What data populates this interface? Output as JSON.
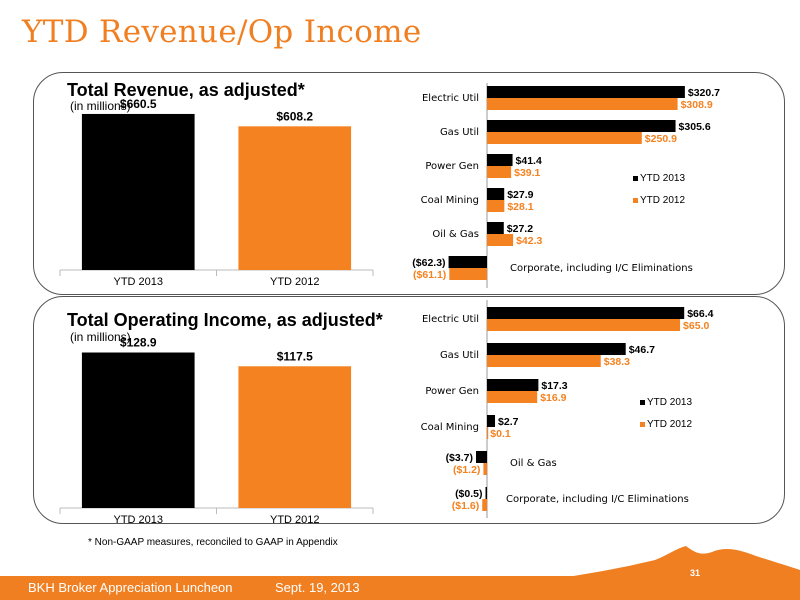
{
  "slide": {
    "title": "YTD Revenue/Op Income",
    "footnote": "* Non-GAAP measures, reconciled to GAAP in Appendix",
    "footer_left": "BKH Broker Appreciation Luncheon",
    "footer_date": "Sept. 19, 2013",
    "page_number": "31"
  },
  "colors": {
    "ytd2013": "#000000",
    "ytd2012": "#f58220",
    "accent": "#f07f22"
  },
  "chart_data": [
    {
      "type": "bar",
      "title": "Total Revenue, as adjusted*",
      "subtitle": "(in millions)",
      "categories": [
        "YTD 2013",
        "YTD 2012"
      ],
      "values": [
        660.5,
        608.2
      ],
      "labels": [
        "$660.5",
        "$608.2"
      ],
      "ylim": [
        0,
        800
      ]
    },
    {
      "type": "bar",
      "orientation": "horizontal",
      "categories": [
        "Electric Util",
        "Gas Util",
        "Power Gen",
        "Coal Mining",
        "Oil & Gas",
        "Corporate, including I/C Eliminations"
      ],
      "series": [
        {
          "name": "YTD 2013",
          "values": [
            320.7,
            305.6,
            41.4,
            27.9,
            27.2,
            -62.3
          ],
          "labels": [
            "$320.7",
            "$305.6",
            "$41.4",
            "$27.9",
            "$27.2",
            "($62.3)"
          ]
        },
        {
          "name": "YTD 2012",
          "values": [
            308.9,
            250.9,
            39.1,
            28.1,
            42.3,
            -61.1
          ],
          "labels": [
            "$308.9",
            "$250.9",
            "$39.1",
            "$28.1",
            "$42.3",
            "($61.1)"
          ]
        }
      ],
      "legend": "right"
    },
    {
      "type": "bar",
      "title": "Total Operating Income, as adjusted*",
      "subtitle": "(in millions)",
      "categories": [
        "YTD 2013",
        "YTD 2012"
      ],
      "values": [
        128.9,
        117.5
      ],
      "labels": [
        "$128.9",
        "$117.5"
      ],
      "ylim": [
        0,
        160
      ]
    },
    {
      "type": "bar",
      "orientation": "horizontal",
      "categories": [
        "Electric Util",
        "Gas Util",
        "Power Gen",
        "Coal Mining",
        "Oil & Gas",
        "Corporate, including I/C Eliminations"
      ],
      "series": [
        {
          "name": "YTD 2013",
          "values": [
            66.4,
            46.7,
            17.3,
            2.7,
            -3.7,
            -0.5
          ],
          "labels": [
            "$66.4",
            "$46.7",
            "$17.3",
            "$2.7",
            "($3.7)",
            "($0.5)"
          ]
        },
        {
          "name": "YTD 2012",
          "values": [
            65.0,
            38.3,
            16.9,
            0.1,
            -1.2,
            -1.6
          ],
          "labels": [
            "$65.0",
            "$38.3",
            "$16.9",
            "$0.1",
            "($1.2)",
            "($1.6)"
          ]
        }
      ],
      "legend": "right"
    }
  ]
}
